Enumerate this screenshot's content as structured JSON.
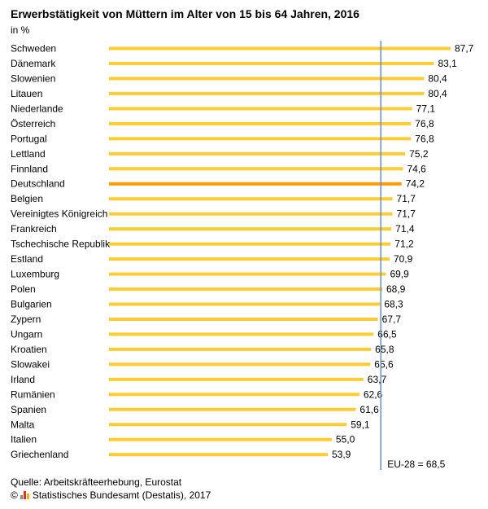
{
  "colors": {
    "bar": "#ffcc33",
    "highlight": "#ff9900",
    "reference_line": "#6d8fc0"
  },
  "chart_data": {
    "type": "bar",
    "orientation": "horizontal",
    "title": "Erwerbstätigkeit von Müttern im Alter von 15 bis 64 Jahren, 2016",
    "unit": "in %",
    "highlight_category": "Deutschland",
    "reference_line": {
      "value": 68.5,
      "label": "EU-28 = 68,5"
    },
    "xlim": [
      0,
      88
    ],
    "categories": [
      "Schweden",
      "Dänemark",
      "Slowenien",
      "Litauen",
      "Niederlande",
      "Österreich",
      "Portugal",
      "Lettland",
      "Finnland",
      "Deutschland",
      "Belgien",
      "Vereinigtes Königreich",
      "Frankreich",
      "Tschechische Republik",
      "Estland",
      "Luxemburg",
      "Polen",
      "Bulgarien",
      "Zypern",
      "Ungarn",
      "Kroatien",
      "Slowakei",
      "Irland",
      "Rumänien",
      "Spanien",
      "Malta",
      "Italien",
      "Griechenland"
    ],
    "values": [
      87.7,
      83.1,
      80.4,
      80.4,
      77.1,
      76.8,
      76.8,
      75.2,
      74.6,
      74.2,
      71.7,
      71.7,
      71.4,
      71.2,
      70.9,
      69.9,
      68.9,
      68.3,
      67.7,
      66.5,
      65.8,
      65.6,
      63.7,
      62.6,
      61.6,
      59.1,
      55.0,
      53.9
    ],
    "value_labels": [
      "87,7",
      "83,1",
      "80,4",
      "80,4",
      "77,1",
      "76,8",
      "76,8",
      "75,2",
      "74,6",
      "74,2",
      "71,7",
      "71,7",
      "71,4",
      "71,2",
      "70,9",
      "69,9",
      "68,9",
      "68,3",
      "67,7",
      "66,5",
      "65,8",
      "65,6",
      "63,7",
      "62,6",
      "61,6",
      "59,1",
      "55,0",
      "53,9"
    ]
  },
  "footer": {
    "source": "Quelle: Arbeitskräfteerhebung, Eurostat",
    "copyright_symbol": "©",
    "copyright_text": "Statistisches Bundesamt (Destatis), 2017"
  }
}
